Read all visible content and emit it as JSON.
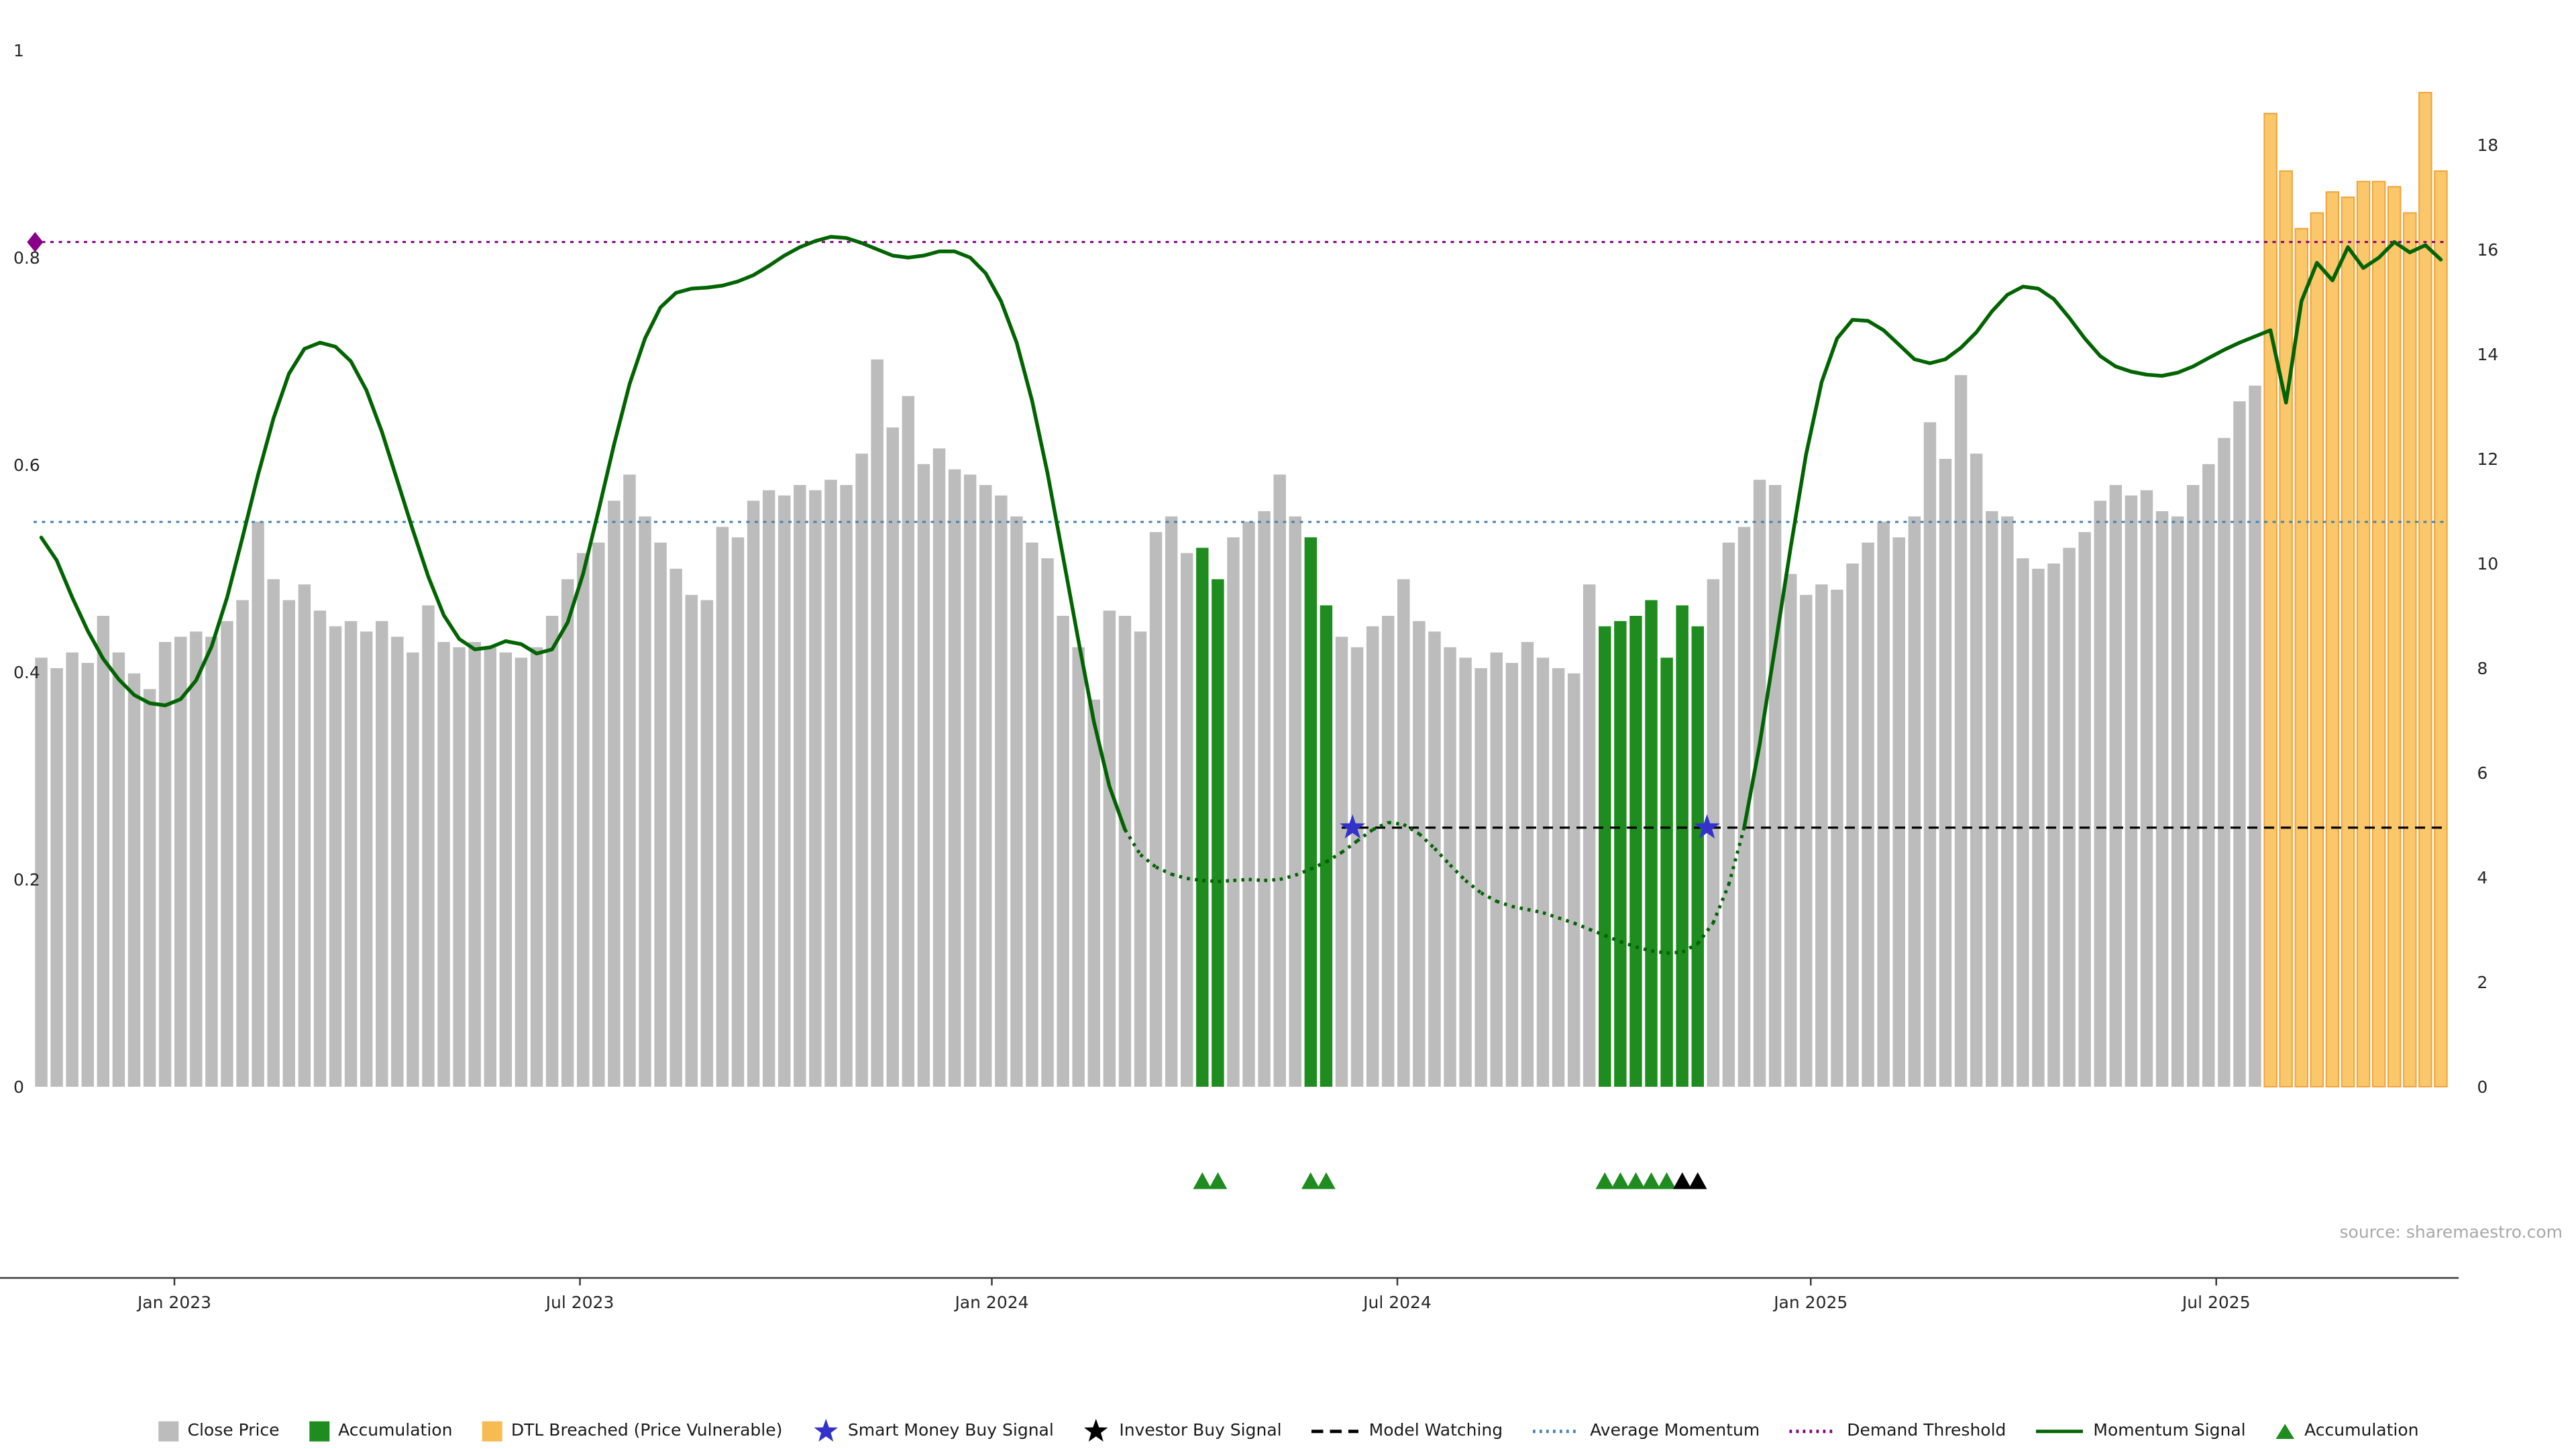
{
  "meta": {
    "source": "source: sharemaestro.com"
  },
  "colors": {
    "close_price": "#bcbcbc",
    "accumulation": "#1e8c1e",
    "dtl_fill": "#fac76a",
    "dtl_edge": "#f0a33a",
    "dtl_legend": "#f7bb54",
    "momentum": "#006400",
    "demand": "#800080",
    "average": "#4682b4",
    "model": "#000000",
    "smart_star": "#3333cc",
    "investor": "#000000",
    "diamond": "#8b008b",
    "axis_text": "#262626",
    "source_text": "#a8a8a8"
  },
  "chart_data": {
    "type": "bar",
    "title": "",
    "xlabel": "",
    "ylabel": "",
    "x_unit": "week",
    "n_bars": 156,
    "x_ticks": [
      {
        "i": 8.6,
        "label": "Jan 2023"
      },
      {
        "i": 34.8,
        "label": "Jul 2023"
      },
      {
        "i": 61.4,
        "label": "Jan 2024"
      },
      {
        "i": 87.6,
        "label": "Jul 2024"
      },
      {
        "i": 114.3,
        "label": "Jan 2025"
      },
      {
        "i": 140.5,
        "label": "Jul 2025"
      }
    ],
    "left_axis": {
      "range": [
        0,
        1
      ],
      "ticks": [
        0,
        0.2,
        0.4,
        0.6,
        0.8,
        1
      ]
    },
    "right_axis": {
      "range": [
        0,
        19.8
      ],
      "ticks": [
        0,
        2,
        4,
        6,
        8,
        10,
        12,
        14,
        16,
        18
      ]
    },
    "bars": {
      "name": "Close Price",
      "axis": "right",
      "values": [
        8.2,
        8.0,
        8.3,
        8.1,
        9.0,
        8.3,
        7.9,
        7.6,
        8.5,
        8.6,
        8.7,
        8.6,
        8.9,
        9.3,
        10.8,
        9.7,
        9.3,
        9.6,
        9.1,
        8.8,
        8.9,
        8.7,
        8.9,
        8.6,
        8.3,
        9.2,
        8.5,
        8.4,
        8.5,
        8.4,
        8.3,
        8.2,
        8.4,
        9.0,
        9.7,
        10.2,
        10.4,
        11.2,
        11.7,
        10.9,
        10.4,
        9.9,
        9.4,
        9.3,
        10.7,
        10.5,
        11.2,
        11.4,
        11.3,
        11.5,
        11.4,
        11.6,
        11.5,
        12.1,
        13.9,
        12.6,
        13.2,
        11.9,
        12.2,
        11.8,
        11.7,
        11.5,
        11.3,
        10.9,
        10.4,
        10.1,
        9.0,
        8.4,
        7.4,
        9.1,
        9.0,
        8.7,
        10.6,
        10.9,
        10.2,
        10.3,
        9.7,
        10.5,
        10.8,
        11.0,
        11.7,
        10.9,
        10.5,
        9.2,
        8.6,
        8.4,
        8.8,
        9.0,
        9.7,
        8.9,
        8.7,
        8.4,
        8.2,
        8.0,
        8.3,
        8.1,
        8.5,
        8.2,
        8.0,
        7.9,
        9.6,
        8.8,
        8.9,
        9.0,
        9.3,
        8.2,
        9.2,
        8.8,
        9.7,
        10.4,
        10.7,
        11.6,
        11.5,
        9.8,
        9.4,
        9.6,
        9.5,
        10.0,
        10.4,
        10.8,
        10.5,
        10.9,
        12.7,
        12.0,
        13.6,
        12.1,
        11.0,
        10.9,
        10.1,
        9.9,
        10.0,
        10.3,
        10.6,
        11.2,
        11.5,
        11.3,
        11.4,
        11.0,
        10.9,
        11.5,
        11.9,
        12.4,
        13.1,
        13.4,
        18.6,
        17.5,
        16.4,
        16.7,
        17.1,
        17.0,
        17.3,
        17.3,
        17.2,
        16.7,
        19.0,
        17.5
      ]
    },
    "bar_states": [
      {
        "from": 75,
        "to": 76,
        "state": "accumulation"
      },
      {
        "from": 82,
        "to": 83,
        "state": "accumulation"
      },
      {
        "from": 101,
        "to": 107,
        "state": "accumulation"
      },
      {
        "from": 144,
        "to": 155,
        "state": "dtl_breached"
      }
    ],
    "momentum": {
      "name": "Momentum Signal",
      "axis": "left",
      "dotted_below": 0.26,
      "values": [
        0.53,
        0.508,
        0.472,
        0.44,
        0.413,
        0.393,
        0.378,
        0.37,
        0.368,
        0.374,
        0.392,
        0.425,
        0.472,
        0.53,
        0.59,
        0.645,
        0.688,
        0.712,
        0.718,
        0.714,
        0.7,
        0.672,
        0.632,
        0.585,
        0.537,
        0.492,
        0.455,
        0.432,
        0.422,
        0.424,
        0.43,
        0.427,
        0.418,
        0.422,
        0.448,
        0.495,
        0.556,
        0.62,
        0.678,
        0.722,
        0.752,
        0.766,
        0.77,
        0.771,
        0.773,
        0.777,
        0.783,
        0.792,
        0.802,
        0.81,
        0.816,
        0.82,
        0.819,
        0.814,
        0.808,
        0.802,
        0.8,
        0.802,
        0.806,
        0.806,
        0.8,
        0.785,
        0.758,
        0.718,
        0.662,
        0.592,
        0.512,
        0.43,
        0.352,
        0.29,
        0.248,
        0.224,
        0.212,
        0.205,
        0.201,
        0.199,
        0.198,
        0.199,
        0.2,
        0.199,
        0.2,
        0.204,
        0.21,
        0.217,
        0.226,
        0.237,
        0.248,
        0.255,
        0.253,
        0.244,
        0.23,
        0.214,
        0.199,
        0.187,
        0.179,
        0.174,
        0.171,
        0.168,
        0.163,
        0.158,
        0.152,
        0.146,
        0.14,
        0.135,
        0.131,
        0.129,
        0.13,
        0.138,
        0.158,
        0.195,
        0.25,
        0.33,
        0.425,
        0.52,
        0.61,
        0.68,
        0.722,
        0.74,
        0.739,
        0.73,
        0.716,
        0.702,
        0.698,
        0.702,
        0.713,
        0.728,
        0.748,
        0.764,
        0.772,
        0.77,
        0.76,
        0.742,
        0.722,
        0.705,
        0.695,
        0.69,
        0.687,
        0.686,
        0.689,
        0.695,
        0.703,
        0.711,
        0.718,
        0.724,
        0.73,
        0.66,
        0.758,
        0.795,
        0.778,
        0.81,
        0.79,
        0.8,
        0.815,
        0.805,
        0.812,
        0.798
      ]
    },
    "reference_lines": [
      {
        "name": "Demand Threshold",
        "axis": "left",
        "value": 0.815,
        "style": "dotted",
        "color": "#800080",
        "span": "full"
      },
      {
        "name": "Average Momentum",
        "axis": "left",
        "value": 0.545,
        "style": "dotted",
        "color": "#4682b4",
        "span": "full"
      },
      {
        "name": "Model Watching",
        "axis": "left",
        "value": 0.25,
        "style": "dashed",
        "color": "#000000",
        "span_from_index": 84
      }
    ],
    "point_markers": [
      {
        "name": "Smart Money Buy Signal",
        "shape": "star",
        "color": "#3333cc",
        "points": [
          {
            "i": 84.7,
            "v": 0.25
          },
          {
            "i": 107.6,
            "v": 0.25
          }
        ]
      },
      {
        "name": "Demand Threshold Start",
        "shape": "diamond",
        "color": "#8b008b",
        "points": [
          {
            "i": -0.4,
            "v": 0.815
          }
        ]
      }
    ],
    "event_rows": [
      {
        "name": "Accumulation",
        "shape": "triangle-up",
        "color": "#1e8c1e",
        "indices": [
          75,
          76,
          82,
          83,
          101,
          102,
          103,
          104,
          105
        ]
      },
      {
        "name": "Investor Buy Signal",
        "shape": "triangle-up",
        "color": "#000000",
        "indices": [
          106,
          107
        ]
      }
    ]
  },
  "legend": [
    {
      "label": "Close Price",
      "swatch": "square",
      "color": "#bcbcbc"
    },
    {
      "label": "Accumulation",
      "swatch": "square",
      "color": "#1e8c1e"
    },
    {
      "label": "DTL Breached (Price Vulnerable)",
      "swatch": "square",
      "color": "#f7bb54"
    },
    {
      "label": "Smart Money Buy Signal",
      "swatch": "star",
      "color": "#3333cc"
    },
    {
      "label": "Investor Buy Signal",
      "swatch": "star",
      "color": "#000000"
    },
    {
      "label": "Model Watching",
      "swatch": "dashed-line",
      "color": "#000000"
    },
    {
      "label": "Average Momentum",
      "swatch": "dotted-line",
      "color": "#4682b4"
    },
    {
      "label": "Demand Threshold",
      "swatch": "dotted-line",
      "color": "#800080"
    },
    {
      "label": "Momentum Signal",
      "swatch": "line",
      "color": "#006400"
    },
    {
      "label": "Accumulation",
      "swatch": "triangle",
      "color": "#1e8c1e"
    }
  ]
}
